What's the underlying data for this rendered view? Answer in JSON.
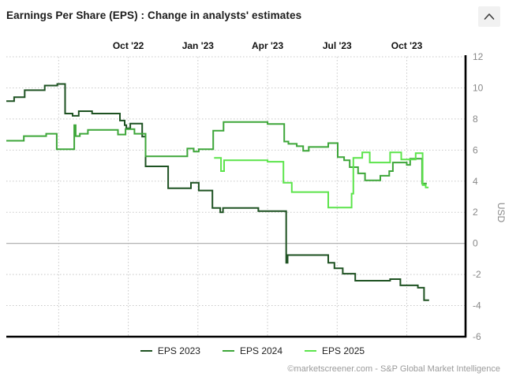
{
  "header": {
    "title": "Earnings Per Share (EPS) : Change in analysts' estimates",
    "collapse_icon": "chevron-up"
  },
  "chart_data": {
    "type": "line",
    "subtype": "step",
    "title": "Earnings Per Share (EPS) : Change in analysts' estimates",
    "ylabel": "USD",
    "grid": true,
    "legend_position": "bottom",
    "x_axis": {
      "range": [
        2022.312,
        2023.961
      ],
      "gridlines": [
        2022.5,
        2022.75,
        2023.0,
        2023.25,
        2023.5,
        2023.75
      ],
      "ticks": [
        {
          "x": 2022.75,
          "label": "Oct '22"
        },
        {
          "x": 2023.0,
          "label": "Jan '23"
        },
        {
          "x": 2023.25,
          "label": "Apr '23"
        },
        {
          "x": 2023.5,
          "label": "Jul '23"
        },
        {
          "x": 2023.75,
          "label": "Oct '23"
        }
      ]
    },
    "y_axis": {
      "range": [
        -6,
        12
      ],
      "ticks": [
        12,
        10,
        8,
        6,
        4,
        2,
        0,
        -2,
        -4,
        -6
      ],
      "zero_line": true,
      "label": "USD"
    },
    "series": [
      {
        "name": "EPS 2023",
        "color": "#1e5222",
        "end_x": 2023.83,
        "points": [
          [
            2022.312,
            9.15
          ],
          [
            2022.34,
            9.4
          ],
          [
            2022.378,
            9.85
          ],
          [
            2022.45,
            10.15
          ],
          [
            2022.495,
            10.25
          ],
          [
            2022.523,
            8.35
          ],
          [
            2022.55,
            8.2
          ],
          [
            2022.572,
            8.5
          ],
          [
            2022.62,
            8.35
          ],
          [
            2022.72,
            7.9
          ],
          [
            2022.737,
            7.6
          ],
          [
            2022.743,
            7.4
          ],
          [
            2022.757,
            7.7
          ],
          [
            2022.8,
            6.87
          ],
          [
            2022.812,
            4.95
          ],
          [
            2022.893,
            3.55
          ],
          [
            2022.975,
            3.9
          ],
          [
            2023.003,
            3.4
          ],
          [
            2023.052,
            2.28
          ],
          [
            2023.08,
            2.0
          ],
          [
            2023.09,
            2.28
          ],
          [
            2023.217,
            2.07
          ],
          [
            2023.317,
            -1.25
          ],
          [
            2023.322,
            -0.75
          ],
          [
            2023.468,
            -1.25
          ],
          [
            2023.49,
            -1.6
          ],
          [
            2023.52,
            -1.95
          ],
          [
            2023.565,
            -2.4
          ],
          [
            2023.69,
            -2.3
          ],
          [
            2023.727,
            -2.7
          ],
          [
            2023.79,
            -2.85
          ],
          [
            2023.812,
            -3.65
          ]
        ]
      },
      {
        "name": "EPS 2024",
        "color": "#3da639",
        "end_x": 2023.822,
        "points": [
          [
            2022.312,
            6.6
          ],
          [
            2022.375,
            6.9
          ],
          [
            2022.455,
            7.05
          ],
          [
            2022.493,
            6.05
          ],
          [
            2022.556,
            7.6
          ],
          [
            2022.561,
            6.9
          ],
          [
            2022.576,
            7.05
          ],
          [
            2022.605,
            7.3
          ],
          [
            2022.713,
            7.0
          ],
          [
            2022.74,
            7.35
          ],
          [
            2022.772,
            7.05
          ],
          [
            2022.812,
            5.6
          ],
          [
            2022.962,
            6.1
          ],
          [
            2022.985,
            5.9
          ],
          [
            2023.003,
            6.05
          ],
          [
            2023.055,
            7.25
          ],
          [
            2023.092,
            7.8
          ],
          [
            2023.25,
            7.68
          ],
          [
            2023.31,
            6.55
          ],
          [
            2023.325,
            6.4
          ],
          [
            2023.355,
            6.25
          ],
          [
            2023.378,
            5.95
          ],
          [
            2023.398,
            6.2
          ],
          [
            2023.468,
            6.45
          ],
          [
            2023.502,
            5.55
          ],
          [
            2023.525,
            5.35
          ],
          [
            2023.545,
            4.9
          ],
          [
            2023.575,
            4.5
          ],
          [
            2023.6,
            4.05
          ],
          [
            2023.655,
            4.35
          ],
          [
            2023.687,
            4.65
          ],
          [
            2023.7,
            5.2
          ],
          [
            2023.75,
            5.05
          ],
          [
            2023.762,
            5.45
          ],
          [
            2023.805,
            3.85
          ]
        ]
      },
      {
        "name": "EPS 2025",
        "color": "#5ce44b",
        "end_x": 2023.828,
        "points": [
          [
            2023.058,
            5.5
          ],
          [
            2023.083,
            4.65
          ],
          [
            2023.094,
            5.35
          ],
          [
            2023.25,
            5.25
          ],
          [
            2023.307,
            3.9
          ],
          [
            2023.337,
            3.3
          ],
          [
            2023.468,
            2.3
          ],
          [
            2023.552,
            3.2
          ],
          [
            2023.558,
            5.5
          ],
          [
            2023.59,
            5.85
          ],
          [
            2023.617,
            5.2
          ],
          [
            2023.69,
            5.85
          ],
          [
            2023.73,
            5.4
          ],
          [
            2023.782,
            5.8
          ],
          [
            2023.807,
            3.75
          ],
          [
            2023.818,
            3.6
          ]
        ]
      }
    ],
    "colors": {
      "grid": "#c8c8c8",
      "zero_line": "#aaaaaa",
      "axis_spine": "#000000",
      "x_tick_text": "#111111",
      "y_tick_text": "#888888"
    }
  },
  "footer": {
    "credit": "©marketscreener.com - S&P Global Market Intelligence"
  }
}
